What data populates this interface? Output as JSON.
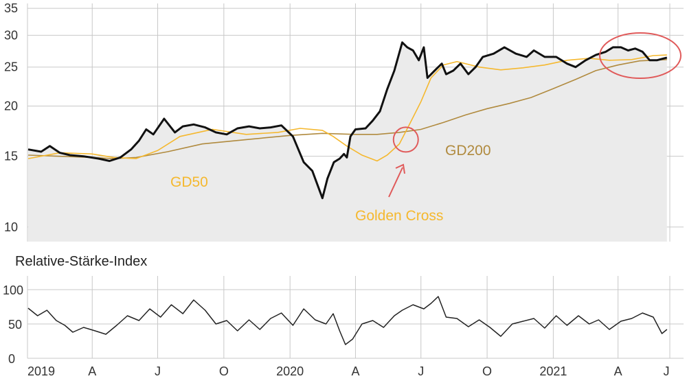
{
  "chart_data": [
    {
      "type": "line",
      "panel": "price",
      "scale": "log",
      "ylim": [
        9.2,
        36
      ],
      "yticks": [
        10,
        15,
        20,
        25,
        30,
        35
      ],
      "grid": true,
      "colors": {
        "price": "#111111",
        "gd50": "#f5b82e",
        "gd200": "#b08a3e",
        "fill": "#ebebeb",
        "highlight": "#e05a5a",
        "golden": "#f5b82e"
      },
      "series": [
        {
          "name": "",
          "key": "price",
          "x": [
            "2019-01-02",
            "2019-01-20",
            "2019-02-01",
            "2019-02-15",
            "2019-03-01",
            "2019-03-20",
            "2019-04-10",
            "2019-04-25",
            "2019-05-10",
            "2019-05-25",
            "2019-06-05",
            "2019-06-15",
            "2019-06-25",
            "2019-07-10",
            "2019-07-25",
            "2019-08-05",
            "2019-08-20",
            "2019-09-05",
            "2019-09-20",
            "2019-10-05",
            "2019-10-20",
            "2019-11-05",
            "2019-11-20",
            "2019-12-05",
            "2019-12-20",
            "2020-01-05",
            "2020-01-20",
            "2020-02-01",
            "2020-02-15",
            "2020-02-22",
            "2020-03-02",
            "2020-03-10",
            "2020-03-16",
            "2020-03-20",
            "2020-03-25",
            "2020-04-01",
            "2020-04-15",
            "2020-04-25",
            "2020-05-05",
            "2020-05-15",
            "2020-05-25",
            "2020-06-05",
            "2020-06-12",
            "2020-06-20",
            "2020-06-28",
            "2020-07-05",
            "2020-07-10",
            "2020-07-20",
            "2020-07-30",
            "2020-08-05",
            "2020-08-15",
            "2020-08-25",
            "2020-09-05",
            "2020-09-15",
            "2020-09-25",
            "2020-10-10",
            "2020-10-25",
            "2020-11-10",
            "2020-11-25",
            "2020-12-05",
            "2020-12-20",
            "2021-01-05",
            "2021-01-20",
            "2021-02-01",
            "2021-02-15",
            "2021-03-01",
            "2021-03-15",
            "2021-03-25",
            "2021-04-05",
            "2021-04-15",
            "2021-04-25",
            "2021-05-05",
            "2021-05-15",
            "2021-05-25",
            "2021-06-01",
            "2021-06-08"
          ],
          "values": [
            15.6,
            15.4,
            15.9,
            15.3,
            15.1,
            15.0,
            14.8,
            14.6,
            14.9,
            15.6,
            16.4,
            17.5,
            17.0,
            18.6,
            17.2,
            17.8,
            18.0,
            17.7,
            17.2,
            17.0,
            17.6,
            17.8,
            17.6,
            17.7,
            17.9,
            16.8,
            14.5,
            13.8,
            11.8,
            13.2,
            14.5,
            14.8,
            15.2,
            14.9,
            16.8,
            17.5,
            17.6,
            18.4,
            19.4,
            22.0,
            24.5,
            28.8,
            28.0,
            27.5,
            26.0,
            28.0,
            23.5,
            24.5,
            25.5,
            24.0,
            24.5,
            25.5,
            24.0,
            25.0,
            26.5,
            27.0,
            28.0,
            27.0,
            26.5,
            27.5,
            26.5,
            26.5,
            25.5,
            25.0,
            26.0,
            26.8,
            27.3,
            28.0,
            28.0,
            27.5,
            27.8,
            27.3,
            26.0,
            26.0,
            26.2,
            26.4
          ]
        },
        {
          "name": "GD50",
          "key": "gd50",
          "x": [
            "2019-01-02",
            "2019-02-15",
            "2019-04-01",
            "2019-05-01",
            "2019-06-01",
            "2019-07-01",
            "2019-08-01",
            "2019-09-15",
            "2019-11-01",
            "2019-12-15",
            "2020-01-15",
            "2020-02-15",
            "2020-03-01",
            "2020-03-20",
            "2020-04-10",
            "2020-05-01",
            "2020-05-15",
            "2020-06-01",
            "2020-06-15",
            "2020-07-01",
            "2020-07-15",
            "2020-08-01",
            "2020-08-20",
            "2020-09-20",
            "2020-10-20",
            "2020-11-20",
            "2020-12-20",
            "2021-01-20",
            "2021-02-20",
            "2021-03-20",
            "2021-04-20",
            "2021-05-20",
            "2021-06-08"
          ],
          "values": [
            14.8,
            15.3,
            15.2,
            14.9,
            14.8,
            15.5,
            16.8,
            17.5,
            17.0,
            17.2,
            17.6,
            17.4,
            16.8,
            15.9,
            15.1,
            14.6,
            15.1,
            16.1,
            18.0,
            20.5,
            23.5,
            25.3,
            25.8,
            25.0,
            24.6,
            24.9,
            25.3,
            26.0,
            26.3,
            26.0,
            26.1,
            26.7,
            26.8
          ]
        },
        {
          "name": "GD200",
          "key": "gd200",
          "x": [
            "2019-01-02",
            "2019-02-15",
            "2019-04-01",
            "2019-05-01",
            "2019-06-01",
            "2019-07-15",
            "2019-09-01",
            "2019-11-01",
            "2020-01-01",
            "2020-02-15",
            "2020-04-01",
            "2020-05-01",
            "2020-06-01",
            "2020-07-01",
            "2020-08-01",
            "2020-09-01",
            "2020-10-01",
            "2020-11-01",
            "2020-12-01",
            "2021-01-01",
            "2021-02-01",
            "2021-03-01",
            "2021-04-01",
            "2021-05-01",
            "2021-06-08"
          ],
          "values": [
            15.1,
            15.0,
            14.9,
            14.8,
            14.9,
            15.4,
            16.1,
            16.5,
            16.9,
            17.1,
            17.0,
            17.0,
            17.2,
            17.5,
            18.2,
            19.0,
            19.7,
            20.3,
            21.0,
            22.1,
            23.3,
            24.5,
            25.3,
            25.9,
            26.1
          ]
        }
      ],
      "annotations": [
        {
          "text": "GD50",
          "key": "gd50_label"
        },
        {
          "text": "GD200",
          "key": "gd200_label"
        },
        {
          "text": "Golden Cross",
          "key": "golden_label"
        }
      ]
    },
    {
      "type": "line",
      "panel": "rsi",
      "title": "Relative-Stärke-Index",
      "ylim": [
        0,
        100
      ],
      "yticks": [
        0,
        50,
        100
      ],
      "grid": true,
      "series": [
        {
          "name": "",
          "key": "rsi",
          "x": [
            "2019-01-02",
            "2019-01-15",
            "2019-01-28",
            "2019-02-10",
            "2019-02-22",
            "2019-03-05",
            "2019-03-20",
            "2019-04-05",
            "2019-04-20",
            "2019-05-05",
            "2019-05-20",
            "2019-06-05",
            "2019-06-20",
            "2019-07-05",
            "2019-07-20",
            "2019-08-05",
            "2019-08-20",
            "2019-09-05",
            "2019-09-20",
            "2019-10-05",
            "2019-10-20",
            "2019-11-05",
            "2019-11-20",
            "2019-12-05",
            "2019-12-20",
            "2020-01-05",
            "2020-01-20",
            "2020-02-05",
            "2020-02-20",
            "2020-03-01",
            "2020-03-10",
            "2020-03-18",
            "2020-03-28",
            "2020-04-10",
            "2020-04-25",
            "2020-05-10",
            "2020-05-25",
            "2020-06-05",
            "2020-06-20",
            "2020-07-05",
            "2020-07-15",
            "2020-07-25",
            "2020-08-05",
            "2020-08-20",
            "2020-09-05",
            "2020-09-20",
            "2020-10-05",
            "2020-10-20",
            "2020-11-05",
            "2020-11-20",
            "2020-12-05",
            "2020-12-20",
            "2021-01-05",
            "2021-01-20",
            "2021-02-05",
            "2021-02-20",
            "2021-03-05",
            "2021-03-20",
            "2021-04-05",
            "2021-04-20",
            "2021-05-05",
            "2021-05-20",
            "2021-06-01",
            "2021-06-08"
          ],
          "values": [
            73,
            62,
            70,
            55,
            48,
            38,
            45,
            40,
            35,
            48,
            62,
            55,
            72,
            60,
            78,
            65,
            85,
            70,
            50,
            55,
            40,
            56,
            42,
            58,
            66,
            48,
            72,
            56,
            50,
            65,
            40,
            20,
            28,
            50,
            55,
            45,
            62,
            70,
            78,
            72,
            80,
            90,
            60,
            58,
            46,
            56,
            45,
            32,
            50,
            54,
            58,
            44,
            62,
            48,
            62,
            50,
            56,
            42,
            54,
            58,
            66,
            60,
            36,
            42
          ]
        }
      ]
    }
  ],
  "x_axis": {
    "labels": [
      "2019",
      "A",
      "J",
      "O",
      "2020",
      "A",
      "J",
      "O",
      "2021",
      "A",
      "J"
    ],
    "dates": [
      "2019-01-01",
      "2019-04-01",
      "2019-07-01",
      "2019-10-01",
      "2020-01-01",
      "2020-04-01",
      "2020-07-01",
      "2020-10-01",
      "2021-01-01",
      "2021-04-01",
      "2021-07-01"
    ]
  }
}
